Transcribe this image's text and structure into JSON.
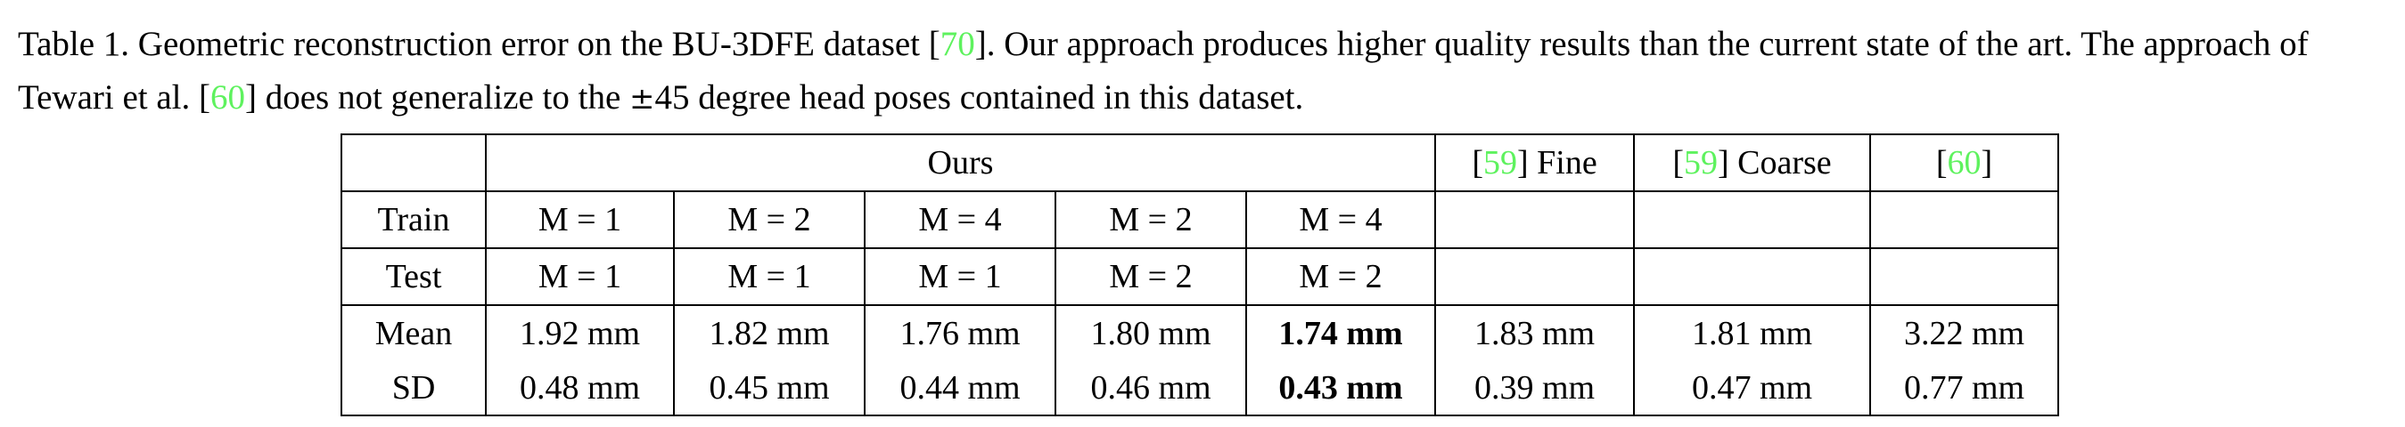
{
  "caption": {
    "part1": "Table 1.  Geometric reconstruction error on the BU-3DFE dataset [",
    "cite1": "70",
    "part2": "]. Our approach produces higher quality results than the current state of the art. The approach of Tewari et al. [",
    "cite2": "60",
    "part3": "] does not generalize to the ",
    "plusminus": "±",
    "part4": "45 degree head poses contained in this dataset."
  },
  "table": {
    "header": {
      "ours": "Ours",
      "fine_cite": "59",
      "fine_label": "] Fine",
      "coarse_cite": "59",
      "coarse_label": "] Coarse",
      "tewari_cite": "60"
    },
    "train": {
      "label": "Train",
      "values": [
        "M = 1",
        "M = 2",
        "M = 4",
        "M = 2",
        "M = 4",
        "",
        "",
        ""
      ]
    },
    "test": {
      "label": "Test",
      "values": [
        "M = 1",
        "M = 1",
        "M = 1",
        "M = 2",
        "M = 2",
        "",
        "",
        ""
      ]
    },
    "mean": {
      "label": "Mean",
      "values": [
        "1.92 mm",
        "1.82 mm",
        "1.76 mm",
        "1.80 mm",
        "1.74 mm",
        "1.83 mm",
        "1.81 mm",
        "3.22 mm"
      ]
    },
    "sd": {
      "label": "SD",
      "values": [
        "0.48 mm",
        "0.45 mm",
        "0.44 mm",
        "0.46 mm",
        "0.43 mm",
        "0.39 mm",
        "0.47 mm",
        "0.77 mm"
      ]
    }
  },
  "colors": {
    "citation": "#5ef25e",
    "text": "#000000",
    "background": "#ffffff"
  }
}
